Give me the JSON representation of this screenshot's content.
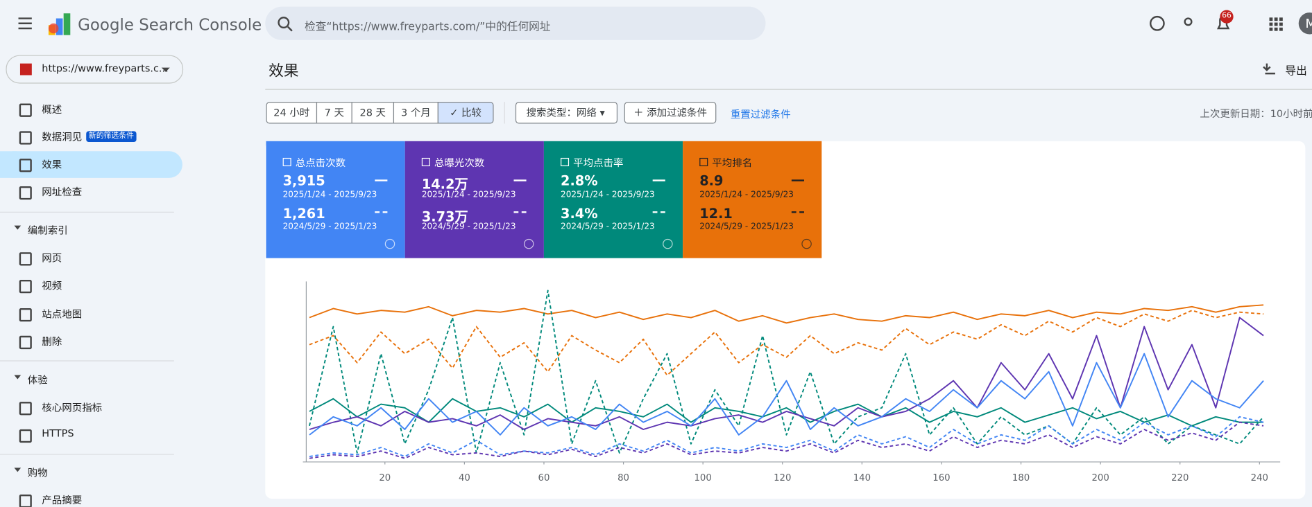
{
  "header": {
    "product": "Google Search Console",
    "search_placeholder": "检查“https://www.freyparts.com/”中的任何网址",
    "notifications": "66",
    "avatar": "M"
  },
  "property": "https://www.freyparts.c...",
  "nav": [
    {
      "label": "概述"
    },
    {
      "label": "数据洞见",
      "badge": "新的筛选条件"
    },
    {
      "label": "效果"
    },
    {
      "label": "网址检查"
    }
  ],
  "sections": [
    {
      "title": "编制索引",
      "items": [
        "网页",
        "视频",
        "站点地图",
        "删除"
      ]
    },
    {
      "title": "体验",
      "items": [
        "核心网页指标",
        "HTTPS"
      ]
    },
    {
      "title": "购物",
      "items": [
        "产品摘要"
      ]
    }
  ],
  "page": {
    "title": "效果",
    "export": "导出",
    "ranges": [
      "24 小时",
      "7 天",
      "28 天",
      "3 个月",
      "比较"
    ],
    "search_type": "搜索类型：网络",
    "add_filter": "添加过滤条件",
    "reset": "重置过滤条件",
    "updated": "上次更新日期：10小时前"
  },
  "cards": [
    {
      "label": "总点击次数",
      "value": "3,915",
      "range": "2025/1/24 - 2025/9/23",
      "prev_value": "1,261",
      "prev_range": "2024/5/29 - 2025/1/23",
      "color": "#4285f4"
    },
    {
      "label": "总曝光次数",
      "value": "14.2万",
      "range": "2025/1/24 - 2025/9/23",
      "prev_value": "3.73万",
      "prev_range": "2024/5/29 - 2025/1/23",
      "color": "#5e35b1"
    },
    {
      "label": "平均点击率",
      "value": "2.8%",
      "range": "2025/1/24 - 2025/9/23",
      "prev_value": "3.4%",
      "prev_range": "2024/5/29 - 2025/1/23",
      "color": "#00897b"
    },
    {
      "label": "平均排名",
      "value": "8.9",
      "range": "2025/1/24 - 2025/9/23",
      "prev_value": "12.1",
      "prev_range": "2024/5/29 - 2025/1/23",
      "color": "#e8710a"
    }
  ],
  "chart_data": {
    "type": "line",
    "x": [
      1,
      7,
      13,
      19,
      25,
      31,
      37,
      43,
      49,
      55,
      61,
      67,
      73,
      79,
      85,
      91,
      97,
      103,
      109,
      115,
      121,
      127,
      133,
      139,
      145,
      151,
      157,
      163,
      169,
      175,
      181,
      187,
      193,
      199,
      205,
      211,
      217,
      223,
      229,
      235,
      241
    ],
    "xlim": [
      0,
      245
    ],
    "xticks": [
      20,
      40,
      60,
      80,
      100,
      120,
      140,
      160,
      180,
      200,
      220,
      240
    ],
    "ylim": [
      0,
      100
    ],
    "series": [
      {
        "color": "#e8710a",
        "dashed": false,
        "values": [
          80,
          85,
          82,
          84,
          83,
          86,
          81,
          84,
          83,
          85,
          82,
          84,
          80,
          83,
          79,
          82,
          80,
          84,
          78,
          81,
          77,
          80,
          82,
          79,
          78,
          81,
          80,
          83,
          79,
          82,
          81,
          84,
          80,
          83,
          82,
          85,
          84,
          86,
          83,
          86,
          87
        ]
      },
      {
        "color": "#e8710a",
        "dashed": true,
        "values": [
          65,
          70,
          55,
          72,
          60,
          68,
          52,
          75,
          58,
          66,
          50,
          70,
          62,
          55,
          68,
          48,
          60,
          72,
          55,
          65,
          58,
          70,
          60,
          66,
          62,
          74,
          65,
          72,
          68,
          76,
          70,
          78,
          72,
          80,
          75,
          82,
          78,
          84,
          80,
          83,
          82
        ]
      },
      {
        "color": "#00897b",
        "dashed": false,
        "values": [
          28,
          35,
          25,
          32,
          30,
          22,
          35,
          28,
          30,
          25,
          32,
          22,
          30,
          28,
          25,
          32,
          22,
          30,
          28,
          25,
          30,
          22,
          28,
          32,
          25,
          30,
          22,
          28,
          25,
          30,
          22,
          26,
          30,
          24,
          28,
          22,
          26,
          20,
          25,
          22,
          22
        ]
      },
      {
        "color": "#00897b",
        "dashed": true,
        "values": [
          20,
          75,
          5,
          60,
          10,
          40,
          80,
          5,
          55,
          15,
          95,
          10,
          45,
          5,
          35,
          60,
          10,
          40,
          20,
          70,
          15,
          50,
          10,
          25,
          30,
          60,
          15,
          30,
          10,
          25,
          15,
          20,
          10,
          30,
          15,
          25,
          10,
          20,
          15,
          10,
          25
        ]
      },
      {
        "color": "#5e35b1",
        "dashed": false,
        "values": [
          18,
          22,
          25,
          20,
          28,
          22,
          24,
          20,
          26,
          18,
          24,
          22,
          20,
          25,
          18,
          22,
          20,
          24,
          26,
          22,
          28,
          24,
          20,
          30,
          25,
          28,
          35,
          45,
          30,
          55,
          40,
          60,
          35,
          70,
          30,
          75,
          40,
          65,
          30,
          80,
          70
        ]
      },
      {
        "color": "#4285f4",
        "dashed": false,
        "values": [
          15,
          25,
          20,
          30,
          18,
          35,
          22,
          28,
          15,
          30,
          20,
          25,
          18,
          32,
          22,
          28,
          20,
          35,
          15,
          25,
          45,
          18,
          30,
          20,
          25,
          35,
          28,
          40,
          30,
          45,
          35,
          50,
          20,
          55,
          30,
          60,
          25,
          45,
          35,
          30,
          45
        ]
      },
      {
        "color": "#4285f4",
        "dashed": true,
        "values": [
          3,
          5,
          4,
          8,
          3,
          10,
          5,
          12,
          4,
          6,
          5,
          8,
          4,
          10,
          6,
          12,
          5,
          8,
          6,
          10,
          8,
          12,
          6,
          15,
          10,
          14,
          8,
          18,
          10,
          15,
          12,
          20,
          10,
          18,
          12,
          22,
          15,
          20,
          14,
          25,
          22
        ]
      },
      {
        "color": "#5e35b1",
        "dashed": true,
        "values": [
          2,
          4,
          3,
          6,
          2,
          8,
          4,
          5,
          3,
          6,
          4,
          7,
          3,
          8,
          5,
          10,
          4,
          6,
          5,
          8,
          6,
          10,
          5,
          12,
          8,
          10,
          6,
          14,
          8,
          12,
          10,
          15,
          8,
          14,
          10,
          18,
          12,
          16,
          12,
          22,
          20
        ]
      }
    ]
  }
}
